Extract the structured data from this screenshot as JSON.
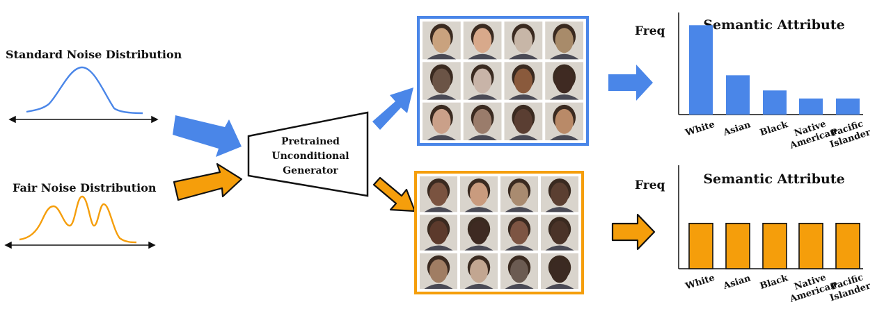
{
  "left_panel": {
    "standard_label": "Standard Noise Distribution",
    "fair_label": "Fair Noise Distribution"
  },
  "generator": {
    "lines": [
      "Pretrained",
      "Unconditional",
      "Generator"
    ]
  },
  "colors": {
    "standard": "#4a86e8",
    "fair": "#f59e0b",
    "standard_face_grid_border": "#4a86e8",
    "fair_face_grid_border": "#f59e0b",
    "text": "#111111"
  },
  "face_grids": [
    {
      "id": "standard",
      "rows": 3,
      "cols": 4,
      "tiles": [
        "#c9a27e",
        "#d8a98b",
        "#c7b6a7",
        "#a88b6a",
        "#6b5446",
        "#c8b4a8",
        "#8a5a3c",
        "#3f2a22",
        "#caa089",
        "#9a7c6b",
        "#5a3e32",
        "#b98a68"
      ]
    },
    {
      "id": "fair",
      "rows": 3,
      "cols": 4,
      "tiles": [
        "#7a5340",
        "#c99b7e",
        "#a98b70",
        "#5b3f31",
        "#5c3a2c",
        "#3e2a22",
        "#7d5543",
        "#4a3328",
        "#a07d63",
        "#c2a691",
        "#6b5b52",
        "#3b2a22"
      ]
    }
  ],
  "chart_data": [
    {
      "type": "bar",
      "title": "Semantic Attribute",
      "ylabel": "Freq",
      "categories": [
        [
          "White"
        ],
        [
          "Asian"
        ],
        [
          "Black"
        ],
        [
          "Native",
          "American"
        ],
        [
          "Pacific",
          "Islander"
        ]
      ],
      "values": [
        1.0,
        0.44,
        0.27,
        0.18,
        0.18
      ],
      "ylim": [
        0,
        1.08
      ],
      "color": "#4a86e8",
      "stroke": "#4a86e8"
    },
    {
      "type": "bar",
      "title": "Semantic Attribute",
      "ylabel": "Freq",
      "categories": [
        [
          "White"
        ],
        [
          "Asian"
        ],
        [
          "Black"
        ],
        [
          "Native",
          "American"
        ],
        [
          "Pacific",
          "Islander"
        ]
      ],
      "values": [
        0.5,
        0.5,
        0.5,
        0.5,
        0.5
      ],
      "ylim": [
        0,
        1.08
      ],
      "color": "#f59e0b",
      "stroke": "#111111"
    }
  ]
}
